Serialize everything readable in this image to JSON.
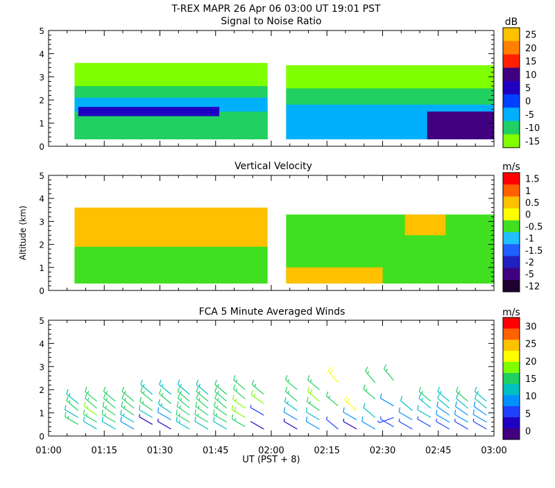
{
  "header": {
    "title": "T-REX  MAPR 26 Apr 06  03:00 UT  19:01  PST"
  },
  "xaxis": {
    "label": "UT  (PST + 8)",
    "ticks": [
      "01:00",
      "01:15",
      "01:30",
      "01:45",
      "02:00",
      "02:15",
      "02:30",
      "02:45",
      "03:00"
    ]
  },
  "yaxis_label": "Altitude (km)",
  "panels": [
    {
      "key": "snr",
      "title": "Signal to Noise Ratio",
      "unit": "dB",
      "colorbar_labels": [
        "25",
        "20",
        "15",
        "10",
        "5",
        "0",
        "-5",
        "-10",
        "-15"
      ],
      "colorbar_colors": [
        "#ffc000",
        "#ff8000",
        "#ff2000",
        "#400080",
        "#2000c0",
        "#0040ff",
        "#00b0ff",
        "#20d060",
        "#80ff00"
      ]
    },
    {
      "key": "vv",
      "title": "Vertical Velocity",
      "unit": "m/s",
      "colorbar_labels": [
        "1.5",
        "1",
        "0.5",
        "0",
        "-0.5",
        "-1",
        "-1.5",
        "-2",
        "-5",
        "-12"
      ],
      "colorbar_colors": [
        "#ff0000",
        "#ff6000",
        "#ffc000",
        "#ffff00",
        "#40e020",
        "#20c0ff",
        "#2060ff",
        "#2020c0",
        "#400080",
        "#200030"
      ]
    },
    {
      "key": "wind",
      "title": "FCA 5 Minute Averaged Winds",
      "unit": "m/s",
      "colorbar_labels": [
        "30",
        "25",
        "20",
        "15",
        "10",
        "5",
        "0"
      ],
      "colorbar_colors": [
        "#ff0000",
        "#ff6000",
        "#ffc000",
        "#ffff00",
        "#80ff00",
        "#20d060",
        "#00c0c0",
        "#0090ff",
        "#2040ff",
        "#2000c0",
        "#400080"
      ]
    }
  ],
  "chart_data": [
    {
      "type": "heatmap",
      "title": "Signal to Noise Ratio",
      "xlabel": "",
      "ylabel": "",
      "xlim": [
        "01:00",
        "03:00"
      ],
      "ylim": [
        0,
        5
      ],
      "yticks": [
        0,
        1,
        2,
        3,
        4,
        5
      ],
      "colorbar_unit": "dB",
      "colorbar_ticks": [
        25,
        20,
        15,
        10,
        5,
        0,
        -5,
        -10,
        -15
      ],
      "data_gaps": [
        [
          "01:59",
          "02:04"
        ]
      ],
      "regions": [
        {
          "t0": "01:07",
          "t1": "01:59",
          "z0": 0.3,
          "z1": 3.6,
          "value": -15
        },
        {
          "t0": "01:07",
          "t1": "01:59",
          "z0": 0.3,
          "z1": 2.6,
          "value": -10
        },
        {
          "t0": "01:07",
          "t1": "01:59",
          "z0": 0.3,
          "z1": 2.1,
          "value": -5
        },
        {
          "t0": "01:07",
          "t1": "01:59",
          "z0": 0.3,
          "z1": 1.5,
          "value": -10
        },
        {
          "t0": "01:08",
          "t1": "01:46",
          "z0": 1.3,
          "z1": 1.7,
          "value": 5
        },
        {
          "t0": "02:04",
          "t1": "03:00",
          "z0": 0.3,
          "z1": 3.5,
          "value": -15
        },
        {
          "t0": "02:04",
          "t1": "03:00",
          "z0": 0.3,
          "z1": 2.5,
          "value": -10
        },
        {
          "t0": "02:04",
          "t1": "03:00",
          "z0": 0.3,
          "z1": 1.8,
          "value": -5
        },
        {
          "t0": "02:42",
          "t1": "03:00",
          "z0": 0.3,
          "z1": 1.5,
          "value": 10
        }
      ]
    },
    {
      "type": "heatmap",
      "title": "Vertical Velocity",
      "xlabel": "",
      "ylabel": "Altitude (km)",
      "xlim": [
        "01:00",
        "03:00"
      ],
      "ylim": [
        0,
        5
      ],
      "yticks": [
        0,
        1,
        2,
        3,
        4,
        5
      ],
      "colorbar_unit": "m/s",
      "colorbar_ticks": [
        1.5,
        1,
        0.5,
        0,
        -0.5,
        -1,
        -1.5,
        -2,
        -5,
        -12
      ],
      "data_gaps": [
        [
          "01:59",
          "02:04"
        ]
      ],
      "regions": [
        {
          "t0": "01:07",
          "t1": "01:59",
          "z0": 0.3,
          "z1": 3.6,
          "value": 0.5
        },
        {
          "t0": "01:07",
          "t1": "01:59",
          "z0": 0.3,
          "z1": 1.9,
          "value": -0.5
        },
        {
          "t0": "02:04",
          "t1": "03:00",
          "z0": 0.3,
          "z1": 3.3,
          "value": -0.5
        },
        {
          "t0": "02:36",
          "t1": "02:47",
          "z0": 2.4,
          "z1": 3.3,
          "value": 0.5
        },
        {
          "t0": "02:04",
          "t1": "02:30",
          "z0": 0.3,
          "z1": 1.0,
          "value": 0.5
        }
      ]
    },
    {
      "type": "scatter",
      "title": "FCA 5 Minute Averaged Winds",
      "xlabel": "UT  (PST + 8)",
      "ylabel": "",
      "xlim": [
        "01:00",
        "03:00"
      ],
      "ylim": [
        0,
        5
      ],
      "yticks": [
        0,
        1,
        2,
        3,
        4,
        5
      ],
      "xticks": [
        "01:00",
        "01:15",
        "01:30",
        "01:45",
        "02:00",
        "02:15",
        "02:30",
        "02:45",
        "03:00"
      ],
      "colorbar_unit": "m/s",
      "colorbar_ticks": [
        30,
        25,
        20,
        15,
        10,
        5,
        0
      ],
      "barbs": [
        {
          "t": "01:08",
          "z": [
            0.5,
            0.8,
            1.1,
            1.4
          ],
          "speed": [
            15,
            12,
            15,
            13
          ],
          "dir": [
            300,
            300,
            310,
            310
          ]
        },
        {
          "t": "01:13",
          "z": [
            0.3,
            0.6,
            0.9,
            1.2,
            1.5
          ],
          "speed": [
            12,
            15,
            17,
            15,
            14
          ],
          "dir": [
            300,
            300,
            305,
            310,
            310
          ]
        },
        {
          "t": "01:18",
          "z": [
            0.3,
            0.6,
            0.9,
            1.2,
            1.5
          ],
          "speed": [
            11,
            14,
            16,
            15,
            15
          ],
          "dir": [
            300,
            300,
            305,
            310,
            310
          ]
        },
        {
          "t": "01:23",
          "z": [
            0.3,
            0.6,
            0.9,
            1.2,
            1.5
          ],
          "speed": [
            10,
            13,
            15,
            15,
            14
          ],
          "dir": [
            300,
            300,
            305,
            310,
            310
          ]
        },
        {
          "t": "01:28",
          "z": [
            0.5,
            0.8,
            1.1,
            1.5,
            1.8
          ],
          "speed": [
            4,
            12,
            15,
            14,
            13
          ],
          "dir": [
            300,
            300,
            305,
            310,
            310
          ]
        },
        {
          "t": "01:33",
          "z": [
            0.3,
            0.7,
            1.0,
            1.4,
            1.8
          ],
          "speed": [
            3,
            8,
            13,
            14,
            13
          ],
          "dir": [
            300,
            300,
            305,
            310,
            310
          ]
        },
        {
          "t": "01:38",
          "z": [
            0.3,
            0.6,
            0.9,
            1.2,
            1.5,
            1.8
          ],
          "speed": [
            13,
            15,
            16,
            15,
            14,
            13
          ],
          "dir": [
            300,
            300,
            305,
            310,
            310,
            310
          ]
        },
        {
          "t": "01:43",
          "z": [
            0.3,
            0.6,
            0.9,
            1.2,
            1.5,
            1.8
          ],
          "speed": [
            12,
            14,
            16,
            15,
            14,
            13
          ],
          "dir": [
            300,
            300,
            305,
            310,
            310,
            310
          ]
        },
        {
          "t": "01:48",
          "z": [
            0.3,
            0.6,
            0.9,
            1.2,
            1.5,
            1.8
          ],
          "speed": [
            11,
            14,
            16,
            15,
            15,
            14
          ],
          "dir": [
            300,
            300,
            305,
            310,
            310,
            310
          ]
        },
        {
          "t": "01:53",
          "z": [
            0.4,
            0.8,
            1.2,
            1.6,
            2.0
          ],
          "speed": [
            16,
            19,
            17,
            15,
            14
          ],
          "dir": [
            300,
            300,
            305,
            310,
            310
          ]
        },
        {
          "t": "01:58",
          "z": [
            0.3,
            0.9,
            1.4,
            1.8
          ],
          "speed": [
            2,
            5,
            17,
            14
          ],
          "dir": [
            300,
            300,
            305,
            310
          ]
        },
        {
          "t": "02:07",
          "z": [
            0.3,
            0.7,
            1.1,
            1.5,
            2.0
          ],
          "speed": [
            3,
            8,
            13,
            14,
            14
          ],
          "dir": [
            300,
            300,
            305,
            310,
            310
          ]
        },
        {
          "t": "02:13",
          "z": [
            0.3,
            0.7,
            1.1,
            1.5,
            2.0
          ],
          "speed": [
            10,
            12,
            14,
            19,
            15
          ],
          "dir": [
            300,
            300,
            305,
            310,
            310
          ]
        },
        {
          "t": "02:18",
          "z": [
            0.3,
            1.3,
            2.3
          ],
          "speed": [
            5,
            14,
            20
          ],
          "dir": [
            310,
            310,
            320
          ]
        },
        {
          "t": "02:23",
          "z": [
            0.3,
            0.7,
            1.1
          ],
          "speed": [
            3,
            9,
            20
          ],
          "dir": [
            300,
            300,
            310
          ]
        },
        {
          "t": "02:28",
          "z": [
            0.3,
            0.8,
            1.6,
            2.3
          ],
          "speed": [
            8,
            12,
            14,
            14
          ],
          "dir": [
            300,
            310,
            310,
            320
          ]
        },
        {
          "t": "02:33",
          "z": [
            0.4,
            0.8,
            1.3,
            2.4
          ],
          "speed": [
            7,
            5,
            10,
            14
          ],
          "dir": [
            300,
            250,
            300,
            320
          ]
        },
        {
          "t": "02:38",
          "z": [
            0.3,
            0.7,
            1.1
          ],
          "speed": [
            5,
            10,
            12
          ],
          "dir": [
            300,
            300,
            310
          ]
        },
        {
          "t": "02:43",
          "z": [
            0.4,
            0.8,
            1.2,
            1.5
          ],
          "speed": [
            7,
            12,
            13,
            14
          ],
          "dir": [
            300,
            300,
            310,
            310
          ]
        },
        {
          "t": "02:48",
          "z": [
            0.3,
            0.6,
            0.9,
            1.2,
            1.5
          ],
          "speed": [
            7,
            10,
            10,
            12,
            13
          ],
          "dir": [
            300,
            300,
            305,
            310,
            310
          ]
        },
        {
          "t": "02:53",
          "z": [
            0.3,
            0.6,
            0.9,
            1.2,
            1.5
          ],
          "speed": [
            6,
            9,
            10,
            12,
            14
          ],
          "dir": [
            300,
            300,
            305,
            310,
            310
          ]
        },
        {
          "t": "02:58",
          "z": [
            0.3,
            0.6,
            0.9,
            1.2,
            1.5
          ],
          "speed": [
            5,
            8,
            10,
            11,
            13
          ],
          "dir": [
            300,
            300,
            305,
            310,
            310
          ]
        }
      ]
    }
  ]
}
